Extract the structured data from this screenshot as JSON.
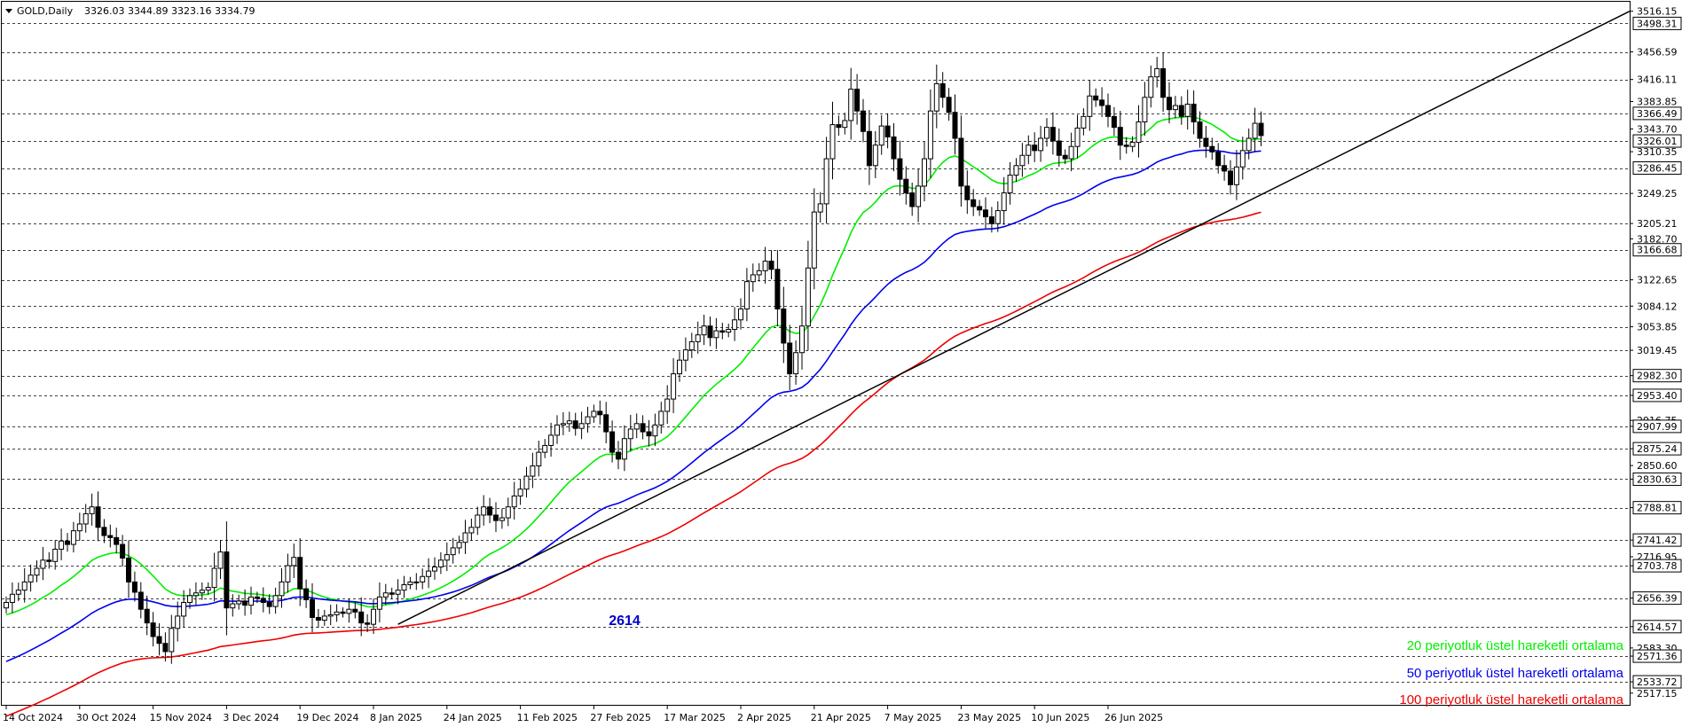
{
  "header": {
    "symbol": "GOLD,Daily",
    "ohlc": "3326.03 3344.89 3323.16 3334.79"
  },
  "legend": [
    {
      "label": "20 periyotluk üstel hareketli ortalama",
      "color": "#00ee00"
    },
    {
      "label": "50 periyotluk üstel hareketli ortalama",
      "color": "#0000ee"
    },
    {
      "label": "100 periyotluk üstel hareketli ortalama",
      "color": "#ee0000"
    }
  ],
  "annotation": {
    "text": "2614",
    "color": "#0000cc",
    "price": 2614,
    "date_index": 68
  },
  "chart_data": {
    "type": "candlestick",
    "title": "GOLD,Daily",
    "ylim": [
      2500,
      3530
    ],
    "price_ticks": [
      "3516.15",
      "3456.59",
      "3416.11",
      "3383.85",
      "3343.70",
      "3310.35",
      "3249.25",
      "3205.21",
      "3182.70",
      "3122.65",
      "3084.12",
      "3053.85",
      "3019.45",
      "2982.30",
      "2953.40",
      "2916.75",
      "2907.99",
      "2875.24",
      "2850.60",
      "2830.63",
      "2788.81",
      "2741.42",
      "2716.95",
      "2703.78",
      "2656.39",
      "2614.57",
      "2583.30",
      "2571.36",
      "2533.72",
      "2517.15"
    ],
    "boxed_prices": [
      "3498.31",
      "3366.49",
      "3326.01",
      "3286.45",
      "3166.68",
      "2982.30",
      "2953.40",
      "2907.99",
      "2875.24",
      "2830.63",
      "2788.81",
      "2741.42",
      "2703.78",
      "2656.39",
      "2614.57",
      "2571.36",
      "2533.72"
    ],
    "gridline_prices": [
      3498.31,
      3456.59,
      3416.11,
      3366.49,
      3326.01,
      3286.45,
      3249.25,
      3205.21,
      3166.68,
      3122.65,
      3084.12,
      3053.85,
      3019.45,
      2982.3,
      2953.4,
      2907.99,
      2875.24,
      2830.63,
      2788.81,
      2741.42,
      2703.78,
      2656.39,
      2614.57,
      2571.36,
      2533.72
    ],
    "date_labels": [
      {
        "label": "14 Oct 2024",
        "index": 0
      },
      {
        "label": "30 Oct 2024",
        "index": 12
      },
      {
        "label": "15 Nov 2024",
        "index": 24
      },
      {
        "label": "3 Dec 2024",
        "index": 36
      },
      {
        "label": "19 Dec 2024",
        "index": 48
      },
      {
        "label": "8 Jan 2025",
        "index": 60
      },
      {
        "label": "24 Jan 2025",
        "index": 72
      },
      {
        "label": "11 Feb 2025",
        "index": 84
      },
      {
        "label": "27 Feb 2025",
        "index": 96
      },
      {
        "label": "17 Mar 2025",
        "index": 108
      },
      {
        "label": "2 Apr 2025",
        "index": 120
      },
      {
        "label": "21 Apr 2025",
        "index": 132
      },
      {
        "label": "7 May 2025",
        "index": 144
      },
      {
        "label": "23 May 2025",
        "index": 156
      },
      {
        "label": "10 Jun 2025",
        "index": 168
      },
      {
        "label": "26 Jun 2025",
        "index": 180
      }
    ],
    "closes": [
      2650,
      2662,
      2668,
      2680,
      2690,
      2700,
      2712,
      2710,
      2728,
      2740,
      2735,
      2755,
      2765,
      2780,
      2790,
      2760,
      2748,
      2745,
      2735,
      2715,
      2680,
      2665,
      2640,
      2620,
      2600,
      2590,
      2578,
      2612,
      2630,
      2650,
      2660,
      2664,
      2668,
      2672,
      2700,
      2724,
      2642,
      2648,
      2652,
      2646,
      2658,
      2656,
      2650,
      2644,
      2660,
      2680,
      2704,
      2716,
      2670,
      2654,
      2628,
      2624,
      2630,
      2632,
      2636,
      2634,
      2640,
      2636,
      2620,
      2618,
      2640,
      2658,
      2664,
      2662,
      2668,
      2676,
      2680,
      2680,
      2688,
      2696,
      2702,
      2712,
      2720,
      2730,
      2738,
      2752,
      2760,
      2778,
      2790,
      2778,
      2770,
      2774,
      2790,
      2806,
      2816,
      2835,
      2850,
      2870,
      2880,
      2895,
      2910,
      2912,
      2916,
      2905,
      2912,
      2922,
      2930,
      2925,
      2900,
      2870,
      2860,
      2890,
      2904,
      2912,
      2900,
      2894,
      2910,
      2930,
      2948,
      2985,
      3005,
      3020,
      3032,
      3042,
      3055,
      3038,
      3048,
      3046,
      3050,
      3064,
      3080,
      3120,
      3130,
      3136,
      3150,
      3138,
      3080,
      3030,
      2985,
      3016,
      3055,
      3140,
      3222,
      3234,
      3300,
      3350,
      3346,
      3356,
      3402,
      3370,
      3340,
      3290,
      3320,
      3348,
      3332,
      3300,
      3270,
      3250,
      3230,
      3260,
      3300,
      3370,
      3410,
      3390,
      3368,
      3330,
      3260,
      3240,
      3230,
      3225,
      3215,
      3205,
      3224,
      3250,
      3276,
      3290,
      3305,
      3320,
      3312,
      3330,
      3346,
      3326,
      3305,
      3300,
      3318,
      3345,
      3362,
      3392,
      3386,
      3378,
      3362,
      3346,
      3320,
      3318,
      3324,
      3354,
      3390,
      3420,
      3432,
      3390,
      3372,
      3378,
      3362,
      3380,
      3354,
      3330,
      3318,
      3310,
      3290,
      3282,
      3262,
      3288,
      3312,
      3330,
      3352,
      3334
    ],
    "ema20_end": 3326,
    "ema50_end": 3286,
    "ema100_end": 3182,
    "trendline": {
      "start_index": 64,
      "start_price": 2618,
      "end_price": 3516.15
    }
  }
}
